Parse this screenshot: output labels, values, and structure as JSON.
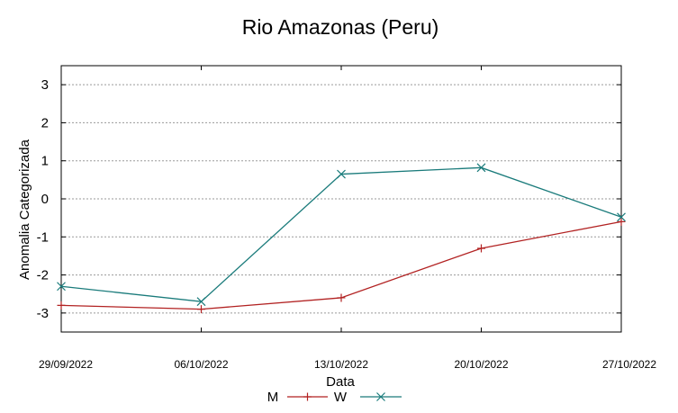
{
  "chart_data": {
    "type": "line",
    "title": "Rio Amazonas (Peru)",
    "xlabel": "Data",
    "ylabel": "Anomalia Categorizada",
    "categories": [
      "29/09/2022",
      "06/10/2022",
      "13/10/2022",
      "20/10/2022",
      "27/10/2022"
    ],
    "ylim": [
      -3.5,
      3.5
    ],
    "yticks": [
      -3,
      -2,
      -1,
      0,
      1,
      2,
      3
    ],
    "grid": true,
    "legend_position": "bottom",
    "series": [
      {
        "name": "M",
        "marker": "plus",
        "color": "#b22222",
        "values": [
          -2.8,
          -2.9,
          -2.6,
          -1.3,
          -0.6
        ]
      },
      {
        "name": "W",
        "marker": "cross",
        "color": "#1a7b7b",
        "values": [
          -2.3,
          -2.7,
          0.65,
          0.82,
          -0.48
        ]
      }
    ]
  }
}
